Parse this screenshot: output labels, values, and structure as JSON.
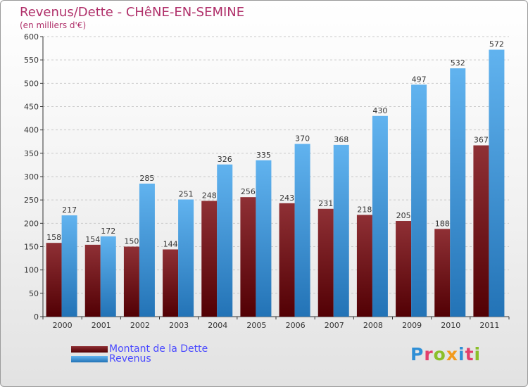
{
  "title": "Revenus/Dette - CHêNE-EN-SEMINE",
  "subtitle": "(en milliers d'€)",
  "logo": {
    "letters": [
      "P",
      "r",
      "o",
      "x",
      "i",
      "t",
      "i"
    ],
    "colors": [
      "#2f8fd6",
      "#e23f6c",
      "#8bbf2a",
      "#f29a1d",
      "#2f8fd6",
      "#e23f6c",
      "#8bbf2a"
    ]
  },
  "colors": {
    "debt_top": "#8f3035",
    "debt_bottom": "#520004",
    "revenue_top": "#61b3ef",
    "revenue_bottom": "#2373b6",
    "title": "#b0306a",
    "legend_text": "#4a4aff"
  },
  "chart_data": {
    "type": "bar",
    "categories": [
      "2000",
      "2001",
      "2002",
      "2003",
      "2004",
      "2005",
      "2006",
      "2007",
      "2008",
      "2009",
      "2010",
      "2011"
    ],
    "series": [
      {
        "name": "Montant de la Dette",
        "values": [
          158,
          154,
          150,
          144,
          248,
          256,
          243,
          231,
          218,
          205,
          188,
          367
        ]
      },
      {
        "name": "Revenus",
        "values": [
          217,
          172,
          285,
          251,
          326,
          335,
          370,
          368,
          430,
          497,
          532,
          572
        ]
      }
    ],
    "ylim": [
      0,
      600
    ],
    "yticks": [
      0,
      50,
      100,
      150,
      200,
      250,
      300,
      350,
      400,
      450,
      500,
      550,
      600
    ],
    "grid": true,
    "legend": "bottom-left"
  }
}
